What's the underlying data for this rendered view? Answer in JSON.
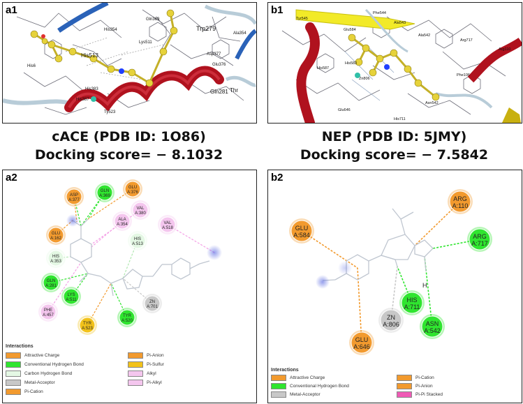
{
  "panels": {
    "a1": {
      "label": "a1",
      "residue_labels": [
        "Trp279",
        "Gln369",
        "His354",
        "Lys511",
        "His513",
        "Asp377",
        "Ala354",
        "Glu376",
        "Gln281",
        "Ty523",
        "His383",
        "His387",
        "Thr",
        "His6"
      ]
    },
    "b1": {
      "label": "b1",
      "residue_labels": [
        "Tyr545",
        "Phe544",
        "Ala543",
        "Arg717",
        "Glu584",
        "His587",
        "His583",
        "Zn806",
        "Glu646",
        "His711",
        "Phe106",
        "Arg110",
        "Ala542",
        "Asn542"
      ]
    },
    "a2": {
      "label": "a2"
    },
    "b2": {
      "label": "b2"
    }
  },
  "captions": {
    "left": {
      "line1": "cACE (PDB ID: 1O86)",
      "line2": "Docking score= − 8.1032"
    },
    "right": {
      "line1": "NEP (PDB ID: 5JMY)",
      "line2": "Docking score= − 7.5842"
    }
  },
  "a2_residues": [
    {
      "id": "asp377",
      "l1": "ASP",
      "l2": "A:377",
      "type": "attractive"
    },
    {
      "id": "gln369",
      "l1": "GLN",
      "l2": "A:369",
      "type": "hbond"
    },
    {
      "id": "glu376",
      "l1": "GLU",
      "l2": "A:376",
      "type": "attractive"
    },
    {
      "id": "val380",
      "l1": "VAL",
      "l2": "A:380",
      "type": "alkyl"
    },
    {
      "id": "ala354",
      "l1": "ALA",
      "l2": "A:354",
      "type": "alkyl"
    },
    {
      "id": "val518",
      "l1": "VAL",
      "l2": "A:518",
      "type": "alkyl"
    },
    {
      "id": "glu162",
      "l1": "GLU",
      "l2": "A:162",
      "type": "attractive"
    },
    {
      "id": "his513",
      "l1": "HIS",
      "l2": "A:513",
      "type": "carbonh"
    },
    {
      "id": "his353",
      "l1": "HIS",
      "l2": "A:353",
      "type": "carbonh"
    },
    {
      "id": "gln281",
      "l1": "GLN",
      "l2": "A:281",
      "type": "hbond"
    },
    {
      "id": "lys511",
      "l1": "LYS",
      "l2": "A:511",
      "type": "hbond"
    },
    {
      "id": "phe457",
      "l1": "PHE",
      "l2": "A:457",
      "type": "alkyl"
    },
    {
      "id": "tyr523",
      "l1": "TYR",
      "l2": "A:523",
      "type": "pisulfur"
    },
    {
      "id": "tyr520",
      "l1": "TYR",
      "l2": "A:520",
      "type": "hbond"
    },
    {
      "id": "zn701",
      "l1": "ZN",
      "l2": "A:701",
      "type": "metal"
    }
  ],
  "b2_residues": [
    {
      "id": "arg110",
      "l1": "ARG",
      "l2": "A:110",
      "type": "attractive"
    },
    {
      "id": "glu584",
      "l1": "GLU",
      "l2": "A:584",
      "type": "attractive"
    },
    {
      "id": "arg717",
      "l1": "ARG",
      "l2": "A:717",
      "type": "hbond"
    },
    {
      "id": "his711",
      "l1": "HIS",
      "l2": "A:711",
      "type": "hbond"
    },
    {
      "id": "zn806",
      "l1": "ZN",
      "l2": "A:806",
      "type": "metal"
    },
    {
      "id": "asn542",
      "l1": "ASN",
      "l2": "A:542",
      "type": "hbond"
    },
    {
      "id": "glu646",
      "l1": "GLU",
      "l2": "A:646",
      "type": "attractive"
    }
  ],
  "b2_atom_label": "H",
  "a2_legend": {
    "title": "Interactions",
    "items": [
      {
        "label": "Attractive Charge",
        "color": "#f29a2e"
      },
      {
        "label": "Pi-Anion",
        "color": "#f29a2e"
      },
      {
        "label": "Conventional Hydrogen Bond",
        "color": "#2fe52f"
      },
      {
        "label": "Pi-Sulfur",
        "color": "#f2c21a"
      },
      {
        "label": "Carbon Hydrogen Bond",
        "color": "#e4f8e4"
      },
      {
        "label": "Alkyl",
        "color": "#f4c6ee"
      },
      {
        "label": "Metal-Acceptor",
        "color": "#c8c8c8"
      },
      {
        "label": "Pi-Alkyl",
        "color": "#f4c6ee"
      },
      {
        "label": "Pi-Cation",
        "color": "#f29a2e"
      }
    ]
  },
  "b2_legend": {
    "title": "Interactions",
    "items": [
      {
        "label": "Attractive Charge",
        "color": "#f29a2e"
      },
      {
        "label": "Pi-Cation",
        "color": "#f29a2e"
      },
      {
        "label": "Conventional Hydrogen Bond",
        "color": "#2fe52f"
      },
      {
        "label": "Pi-Anion",
        "color": "#f29a2e"
      },
      {
        "label": "Metal-Acceptor",
        "color": "#c8c8c8"
      },
      {
        "label": "Pi-Pi Stacked",
        "color": "#ef5ab5"
      }
    ]
  },
  "colors": {
    "attractive": "#f29a2e",
    "hbond": "#2fe52f",
    "carbonh": "#e4f8e4",
    "alkyl": "#f4c6ee",
    "pisulfur": "#f2c21a",
    "metal": "#c8c8c8",
    "pipi": "#ef5ab5",
    "helix": "#b0121e",
    "ligand": "#e6d23a"
  }
}
